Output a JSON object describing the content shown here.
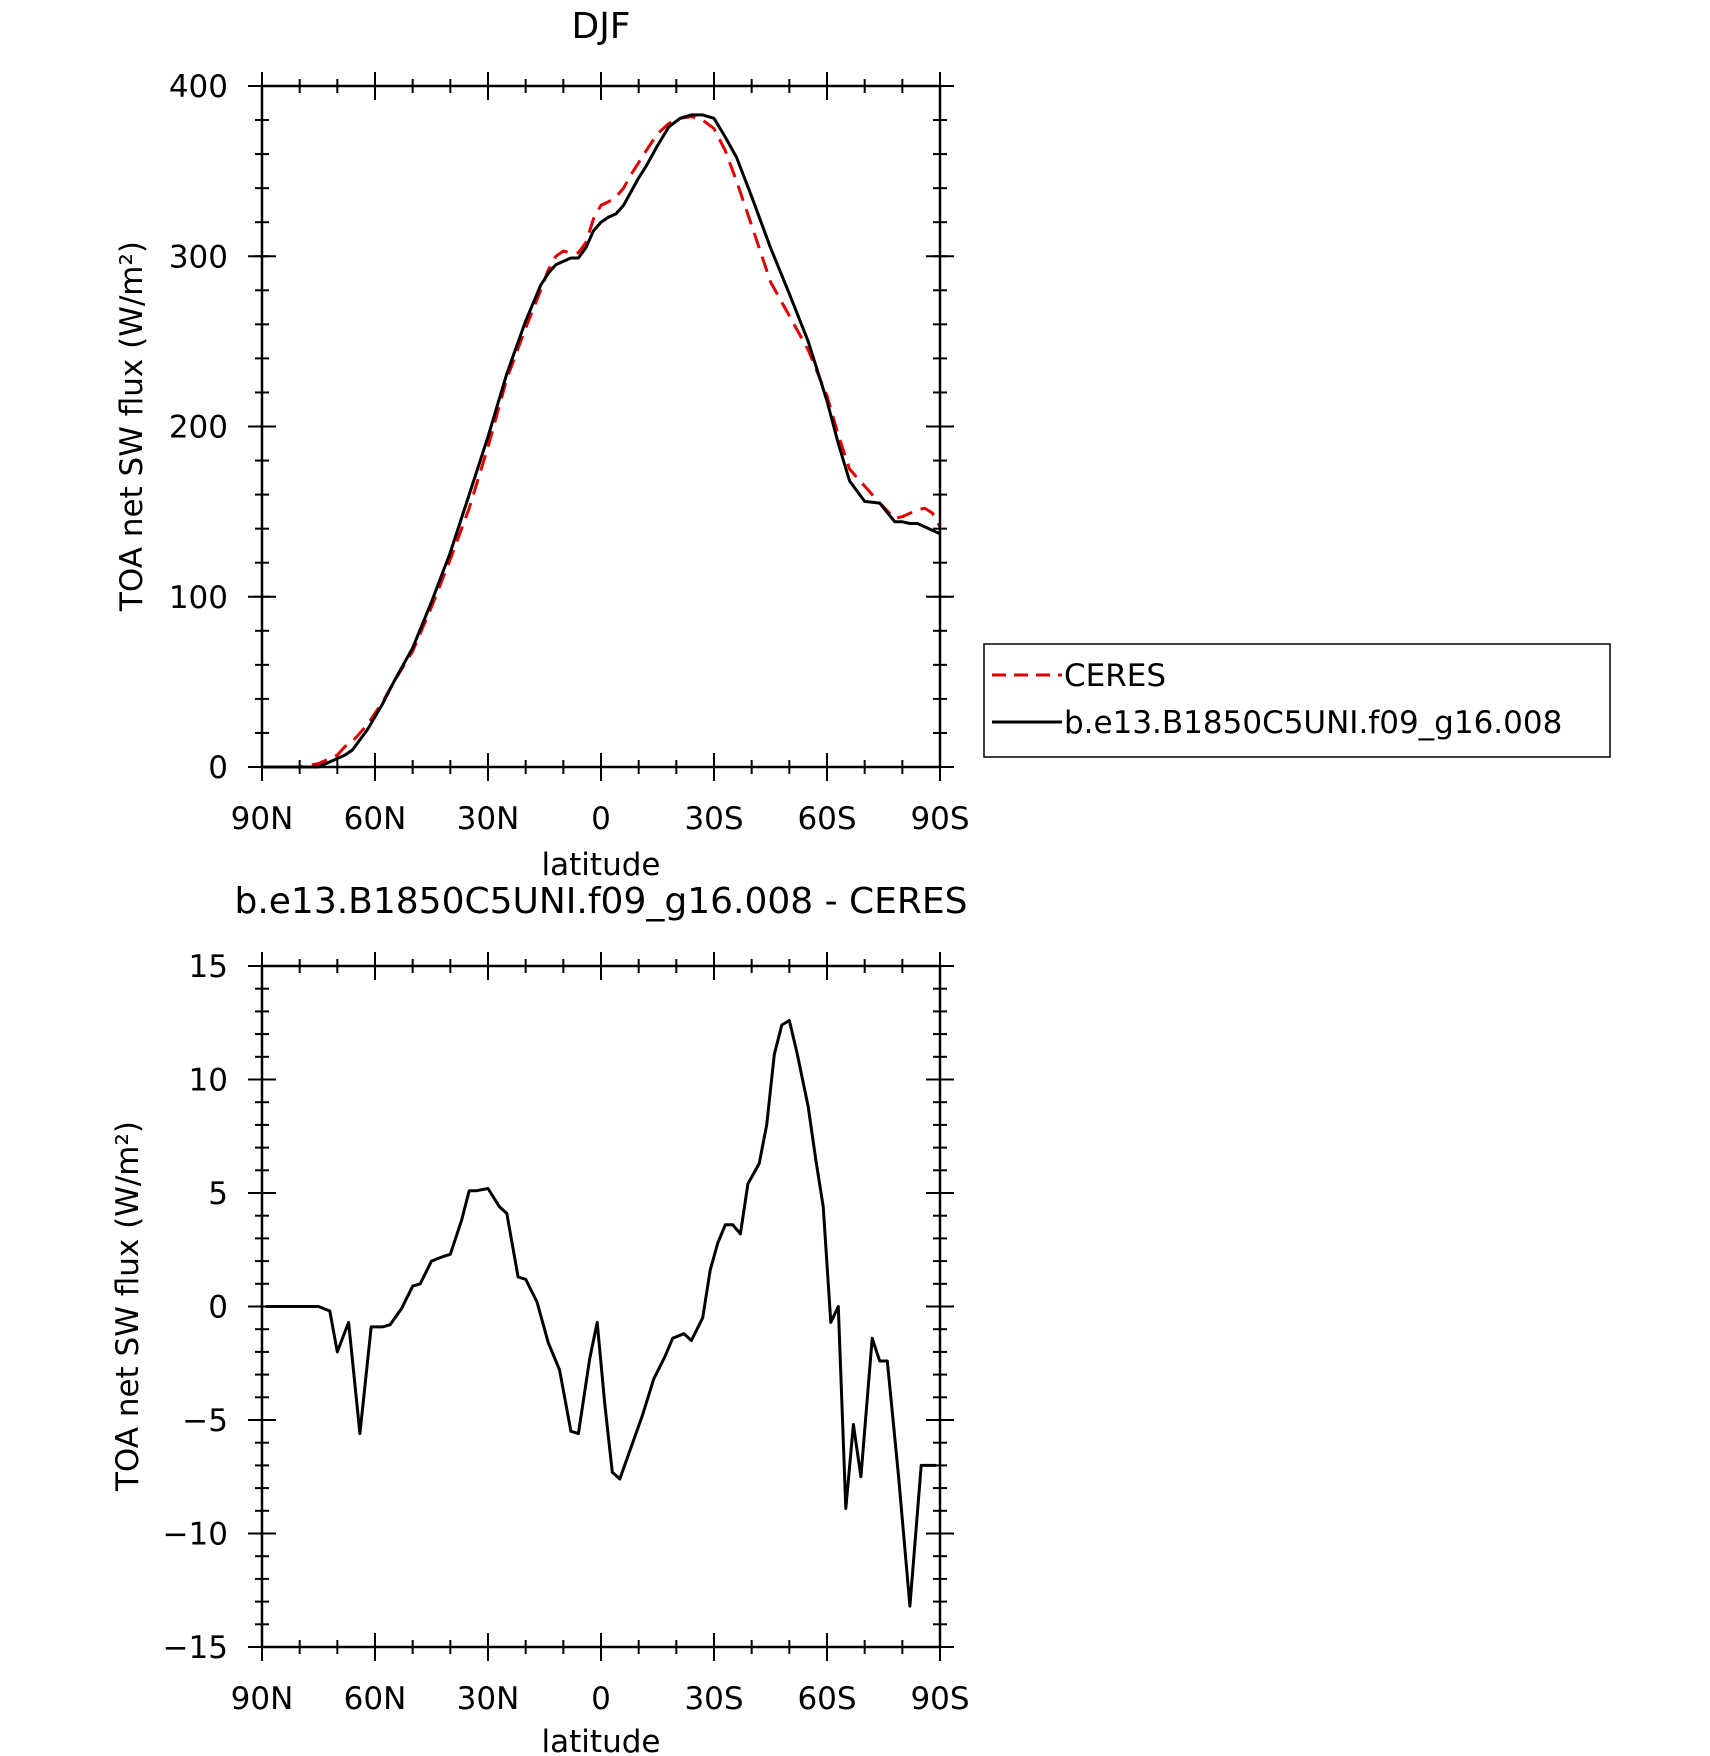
{
  "chart_data": [
    {
      "type": "line",
      "title": "DJF",
      "xlabel": "latitude",
      "ylabel": "TOA net SW flux (W/m²)",
      "xlim": [
        90,
        -90
      ],
      "ylim": [
        0,
        400
      ],
      "x_ticks": [
        {
          "value": 90,
          "label": "90N"
        },
        {
          "value": 60,
          "label": "60N"
        },
        {
          "value": 30,
          "label": "30N"
        },
        {
          "value": 0,
          "label": "0"
        },
        {
          "value": -30,
          "label": "30S"
        },
        {
          "value": -60,
          "label": "60S"
        },
        {
          "value": -90,
          "label": "90S"
        }
      ],
      "y_ticks": [
        0,
        100,
        200,
        300,
        400
      ],
      "legend_position": "right",
      "series": [
        {
          "name": "CERES",
          "color": "#e00000",
          "dash": true,
          "x": [
            90,
            85,
            80,
            75,
            72,
            70,
            68,
            66,
            62,
            58,
            55,
            50,
            45,
            40,
            35,
            30,
            25,
            20,
            16,
            14,
            12,
            10,
            8,
            6,
            4,
            2,
            0,
            -2,
            -4,
            -6,
            -8,
            -10,
            -12,
            -15,
            -18,
            -21,
            -24,
            -27,
            -30,
            -33,
            -36,
            -40,
            -45,
            -50,
            -55,
            -60,
            -63,
            -66,
            -70,
            -74,
            -78,
            -80,
            -82,
            -84,
            -86,
            -88,
            -90
          ],
          "y": [
            0,
            0,
            0,
            2,
            5,
            7,
            12,
            15,
            25,
            38,
            50,
            68,
            94,
            122,
            152,
            188,
            228,
            258,
            280,
            292,
            300,
            303,
            302,
            302,
            308,
            322,
            330,
            332,
            335,
            340,
            348,
            355,
            362,
            372,
            378,
            381,
            382,
            380,
            375,
            362,
            344,
            318,
            285,
            265,
            245,
            218,
            195,
            175,
            165,
            155,
            146,
            147,
            149,
            151,
            152,
            149,
            141
          ]
        },
        {
          "name": "b.e13.B1850C5UNI.f09_g16.008",
          "color": "#000000",
          "dash": false,
          "x": [
            90,
            85,
            80,
            75,
            72,
            70,
            68,
            66,
            62,
            58,
            55,
            50,
            45,
            40,
            35,
            30,
            25,
            20,
            16,
            14,
            12,
            10,
            8,
            6,
            4,
            2,
            0,
            -2,
            -4,
            -6,
            -8,
            -10,
            -12,
            -15,
            -18,
            -21,
            -24,
            -27,
            -30,
            -33,
            -36,
            -40,
            -45,
            -50,
            -55,
            -60,
            -63,
            -66,
            -70,
            -74,
            -78,
            -80,
            -82,
            -84,
            -86,
            -88,
            -90
          ],
          "y": [
            0,
            0,
            0,
            0,
            3,
            5,
            7,
            10,
            22,
            37,
            50,
            70,
            97,
            126,
            160,
            194,
            231,
            262,
            283,
            290,
            295,
            297,
            299,
            299,
            305,
            315,
            320,
            323,
            325,
            330,
            338,
            346,
            353,
            365,
            376,
            381,
            383,
            383,
            381,
            370,
            358,
            335,
            305,
            278,
            250,
            215,
            190,
            168,
            156,
            155,
            144,
            144,
            143,
            143,
            141,
            139,
            137
          ]
        }
      ]
    },
    {
      "type": "line",
      "title": "b.e13.B1850C5UNI.f09_g16.008 - CERES",
      "xlabel": "latitude",
      "ylabel": "TOA net SW flux (W/m²)",
      "xlim": [
        90,
        -90
      ],
      "ylim": [
        -15,
        15
      ],
      "x_ticks": [
        {
          "value": 90,
          "label": "90N"
        },
        {
          "value": 60,
          "label": "60N"
        },
        {
          "value": 30,
          "label": "30N"
        },
        {
          "value": 0,
          "label": "0"
        },
        {
          "value": -30,
          "label": "30S"
        },
        {
          "value": -60,
          "label": "60S"
        },
        {
          "value": -90,
          "label": "90S"
        }
      ],
      "y_ticks": [
        -15,
        -10,
        -5,
        0,
        5,
        10,
        15
      ],
      "series": [
        {
          "color": "#000000",
          "dash": false,
          "x": [
            89,
            85,
            81,
            78,
            75,
            72,
            70,
            67,
            64,
            61,
            58,
            56,
            53,
            50,
            48,
            45,
            42,
            40,
            37,
            35,
            33,
            30,
            27,
            25,
            22,
            20,
            17,
            14,
            11,
            8,
            6,
            3,
            1,
            -1,
            -3,
            -5,
            -8,
            -11,
            -14,
            -17,
            -19,
            -22,
            -24,
            -27,
            -29,
            -31,
            -33,
            -35,
            -37,
            -39,
            -42,
            -44,
            -46,
            -48,
            -50,
            -52,
            -55,
            -57,
            -59,
            -61,
            -63,
            -65,
            -67,
            -69,
            -72,
            -74,
            -76,
            -79,
            -82,
            -85,
            -88,
            -89
          ],
          "y": [
            0,
            0,
            0,
            0,
            0,
            -0.2,
            -2,
            -0.7,
            -5.6,
            -0.9,
            -0.9,
            -0.8,
            -0.1,
            0.9,
            1.0,
            2.0,
            2.2,
            2.3,
            3.8,
            5.1,
            5.1,
            5.2,
            4.4,
            4.1,
            1.3,
            1.2,
            0.2,
            -1.6,
            -2.8,
            -5.5,
            -5.6,
            -2.3,
            -0.7,
            -4.3,
            -7.3,
            -7.6,
            -6.2,
            -4.8,
            -3.2,
            -2.2,
            -1.4,
            -1.2,
            -1.5,
            -0.5,
            1.6,
            2.8,
            3.6,
            3.6,
            3.2,
            5.4,
            6.3,
            8.0,
            11.1,
            12.4,
            12.6,
            11.2,
            8.8,
            6.5,
            4.4,
            -0.7,
            0.0,
            -8.9,
            -5.2,
            -7.5,
            -1.4,
            -2.4,
            -2.4,
            -7.5,
            -13.2,
            -7.0,
            -7.0,
            -7.0
          ]
        }
      ]
    }
  ]
}
